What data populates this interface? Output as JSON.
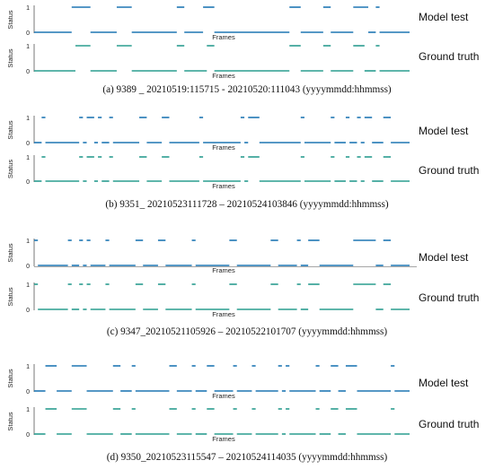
{
  "figure": {
    "captions": [
      "(a) 9389 _ 20210519:115715 - 20210520:111043 (yyyymmdd:hhmmss)",
      "(b) 9351_ 20210523111728 – 20210524103846 (yyyymmdd:hhmmss)",
      "(c) 9347_20210521105926 – 20210522101707 (yyyymmdd:hhmmss)",
      "(d) 9350_20210523115547 – 20210524114035 (yyyymmdd:hhmmss)"
    ],
    "row_labels": [
      "Model test",
      "Ground truth"
    ]
  },
  "colors": {
    "model_test": "#1f77b4",
    "ground_truth": "#2a9d8f",
    "axis": "#555555",
    "baseline_c": "#888888"
  },
  "chart_data": [
    {
      "id": "a-model-test",
      "type": "line",
      "title": "",
      "xlabel": "Frames",
      "ylabel": "Status",
      "yticks": [
        0,
        1
      ],
      "ylim": [
        0,
        1
      ],
      "xlim": [
        0,
        1
      ],
      "on_intervals": [
        [
          0.1,
          0.15
        ],
        [
          0.22,
          0.26
        ],
        [
          0.38,
          0.4
        ],
        [
          0.45,
          0.48
        ],
        [
          0.68,
          0.71
        ],
        [
          0.77,
          0.79
        ],
        [
          0.85,
          0.89
        ],
        [
          0.91,
          0.92
        ]
      ]
    },
    {
      "id": "a-ground-truth",
      "type": "line",
      "title": "",
      "xlabel": "Frames",
      "ylabel": "Status",
      "yticks": [
        0,
        1
      ],
      "ylim": [
        0,
        1
      ],
      "xlim": [
        0,
        1
      ],
      "on_intervals": [
        [
          0.11,
          0.15
        ],
        [
          0.22,
          0.26
        ],
        [
          0.38,
          0.4
        ],
        [
          0.46,
          0.48
        ],
        [
          0.68,
          0.71
        ],
        [
          0.77,
          0.79
        ],
        [
          0.85,
          0.88
        ],
        [
          0.91,
          0.92
        ]
      ]
    },
    {
      "id": "b-model-test",
      "type": "line",
      "title": "",
      "xlabel": "Frames",
      "ylabel": "Status",
      "yticks": [
        0,
        1
      ],
      "ylim": [
        0,
        1
      ],
      "xlim": [
        0,
        1
      ],
      "on_intervals": [
        [
          0.02,
          0.03
        ],
        [
          0.12,
          0.13
        ],
        [
          0.14,
          0.16
        ],
        [
          0.17,
          0.18
        ],
        [
          0.2,
          0.21
        ],
        [
          0.28,
          0.3
        ],
        [
          0.34,
          0.36
        ],
        [
          0.44,
          0.45
        ],
        [
          0.55,
          0.56
        ],
        [
          0.57,
          0.6
        ],
        [
          0.71,
          0.72
        ],
        [
          0.79,
          0.8
        ],
        [
          0.83,
          0.84
        ],
        [
          0.86,
          0.87
        ],
        [
          0.88,
          0.9
        ],
        [
          0.93,
          0.95
        ]
      ]
    },
    {
      "id": "b-ground-truth",
      "type": "line",
      "title": "",
      "xlabel": "Frames",
      "ylabel": "Status",
      "yticks": [
        0,
        1
      ],
      "ylim": [
        0,
        1
      ],
      "xlim": [
        0,
        1
      ],
      "on_intervals": [
        [
          0.02,
          0.03
        ],
        [
          0.12,
          0.13
        ],
        [
          0.14,
          0.16
        ],
        [
          0.17,
          0.18
        ],
        [
          0.2,
          0.21
        ],
        [
          0.28,
          0.3
        ],
        [
          0.34,
          0.36
        ],
        [
          0.44,
          0.45
        ],
        [
          0.55,
          0.56
        ],
        [
          0.57,
          0.6
        ],
        [
          0.71,
          0.72
        ],
        [
          0.79,
          0.8
        ],
        [
          0.83,
          0.84
        ],
        [
          0.86,
          0.87
        ],
        [
          0.88,
          0.9
        ],
        [
          0.93,
          0.95
        ]
      ]
    },
    {
      "id": "c-model-test",
      "type": "line",
      "title": "",
      "xlabel": "Frames",
      "ylabel": "Status",
      "yticks": [
        0,
        1
      ],
      "ylim": [
        0,
        1
      ],
      "xlim": [
        0,
        1
      ],
      "on_intervals": [
        [
          0.0,
          0.01
        ],
        [
          0.09,
          0.1
        ],
        [
          0.12,
          0.13
        ],
        [
          0.14,
          0.15
        ],
        [
          0.19,
          0.2
        ],
        [
          0.27,
          0.29
        ],
        [
          0.33,
          0.35
        ],
        [
          0.42,
          0.43
        ],
        [
          0.52,
          0.54
        ],
        [
          0.63,
          0.65
        ],
        [
          0.7,
          0.71
        ],
        [
          0.73,
          0.76
        ],
        [
          0.85,
          0.91
        ],
        [
          0.93,
          0.95
        ]
      ]
    },
    {
      "id": "c-ground-truth",
      "type": "line",
      "title": "",
      "xlabel": "Frames",
      "ylabel": "Status",
      "yticks": [
        0,
        1
      ],
      "ylim": [
        0,
        1
      ],
      "xlim": [
        0,
        1
      ],
      "on_intervals": [
        [
          0.0,
          0.01
        ],
        [
          0.09,
          0.1
        ],
        [
          0.12,
          0.13
        ],
        [
          0.14,
          0.15
        ],
        [
          0.19,
          0.2
        ],
        [
          0.27,
          0.29
        ],
        [
          0.33,
          0.35
        ],
        [
          0.42,
          0.43
        ],
        [
          0.52,
          0.54
        ],
        [
          0.63,
          0.65
        ],
        [
          0.7,
          0.71
        ],
        [
          0.73,
          0.76
        ],
        [
          0.85,
          0.91
        ],
        [
          0.93,
          0.95
        ]
      ]
    },
    {
      "id": "d-model-test",
      "type": "line",
      "title": "",
      "xlabel": "Frames",
      "ylabel": "Status",
      "yticks": [
        0,
        1
      ],
      "ylim": [
        0,
        1
      ],
      "xlim": [
        0,
        1
      ],
      "on_intervals": [
        [
          0.03,
          0.06
        ],
        [
          0.1,
          0.14
        ],
        [
          0.21,
          0.23
        ],
        [
          0.26,
          0.27
        ],
        [
          0.36,
          0.38
        ],
        [
          0.42,
          0.43
        ],
        [
          0.46,
          0.48
        ],
        [
          0.53,
          0.54
        ],
        [
          0.58,
          0.59
        ],
        [
          0.65,
          0.66
        ],
        [
          0.67,
          0.68
        ],
        [
          0.75,
          0.76
        ],
        [
          0.79,
          0.81
        ],
        [
          0.83,
          0.86
        ],
        [
          0.95,
          0.96
        ]
      ]
    },
    {
      "id": "d-ground-truth",
      "type": "line",
      "title": "",
      "xlabel": "Frames",
      "ylabel": "Status",
      "yticks": [
        0,
        1
      ],
      "ylim": [
        0,
        1
      ],
      "xlim": [
        0,
        1
      ],
      "on_intervals": [
        [
          0.03,
          0.06
        ],
        [
          0.1,
          0.14
        ],
        [
          0.21,
          0.23
        ],
        [
          0.26,
          0.27
        ],
        [
          0.36,
          0.38
        ],
        [
          0.42,
          0.43
        ],
        [
          0.46,
          0.48
        ],
        [
          0.53,
          0.54
        ],
        [
          0.58,
          0.59
        ],
        [
          0.65,
          0.66
        ],
        [
          0.67,
          0.68
        ],
        [
          0.75,
          0.76
        ],
        [
          0.79,
          0.81
        ],
        [
          0.83,
          0.86
        ],
        [
          0.95,
          0.96
        ]
      ]
    }
  ]
}
